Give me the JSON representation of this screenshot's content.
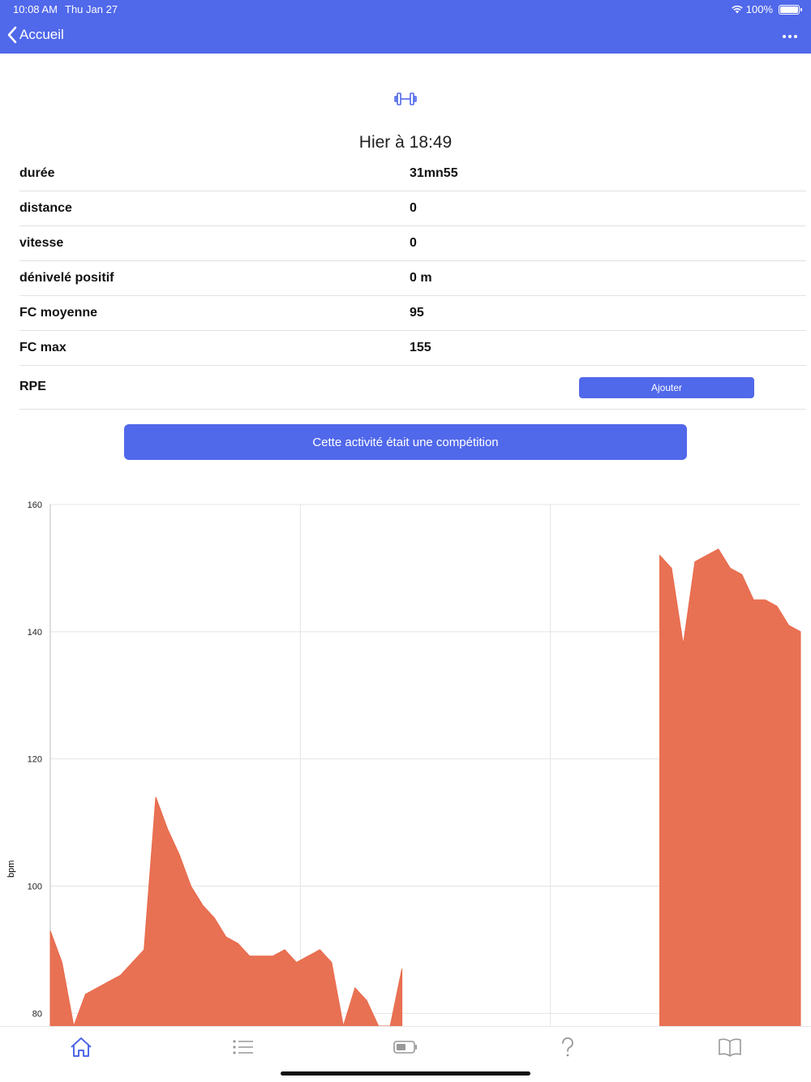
{
  "status_bar": {
    "time": "10:08 AM",
    "date": "Thu Jan 27",
    "battery": "100%"
  },
  "header": {
    "back_label": "Accueil",
    "more_icon": "ellipsis-icon"
  },
  "activity": {
    "icon": "dumbbell-icon",
    "title": "Hier à 18:49",
    "stats": [
      {
        "label": "durée",
        "value": "31mn55"
      },
      {
        "label": "distance",
        "value": "0"
      },
      {
        "label": "vitesse",
        "value": "0"
      },
      {
        "label": "dénivelé positif",
        "value": "0 m"
      },
      {
        "label": "FC moyenne",
        "value": "95"
      },
      {
        "label": "FC max",
        "value": "155"
      }
    ],
    "rpe_label": "RPE",
    "add_label": "Ajouter",
    "competition_label": "Cette activité était une compétition"
  },
  "chart_data": {
    "type": "area",
    "ylabel": "bpm",
    "ylim": [
      78,
      160
    ],
    "y_ticks": [
      "160",
      "140",
      "120",
      "100",
      "80"
    ],
    "x": [
      0.0,
      0.5,
      1.0,
      1.5,
      2.0,
      2.5,
      3.0,
      3.5,
      4.0,
      4.5,
      5.0,
      5.5,
      6.0,
      6.5,
      7.0,
      7.5,
      8.0,
      8.5,
      9.0,
      9.5,
      10.0,
      10.5,
      11.0,
      11.5,
      12.0,
      12.5,
      13.0,
      13.5,
      14.0,
      14.5,
      15.0,
      15.5,
      16.0,
      16.5,
      17.0,
      17.5,
      18.0,
      18.5,
      19.0,
      19.5,
      20.0,
      20.5,
      21.0,
      21.5,
      22.0,
      22.5,
      23.0,
      23.5,
      24.0,
      24.5,
      25.0,
      25.5,
      26.0,
      26.5,
      27.0,
      27.5,
      28.0,
      28.5,
      29.0,
      29.5,
      30.0,
      30.5,
      31.0,
      31.5,
      32.0
    ],
    "series": [
      {
        "color": "#e8694a",
        "values": [
          93,
          88,
          78,
          83,
          84,
          85,
          86,
          88,
          90,
          114,
          109,
          105,
          100,
          97,
          95,
          92,
          91,
          89,
          89,
          89,
          90,
          88,
          89,
          90,
          88,
          78,
          84,
          82,
          78,
          78,
          87,
          null,
          null,
          null,
          null,
          null,
          null,
          null,
          null,
          null,
          null,
          null,
          null,
          null,
          null,
          null,
          null,
          null,
          null,
          null,
          null,
          null,
          152,
          150,
          138,
          151,
          152,
          153,
          150,
          149,
          145,
          145,
          144,
          141,
          140
        ]
      }
    ],
    "vertical_gridlines": 3,
    "grid": true
  }
}
